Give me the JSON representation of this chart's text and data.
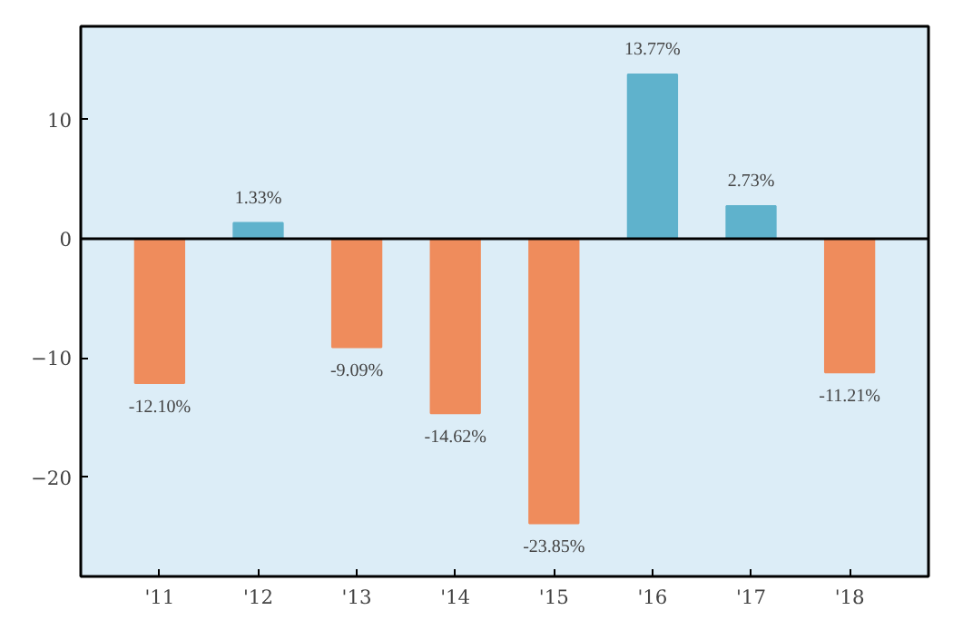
{
  "chart_data": {
    "type": "bar",
    "categories": [
      "'11",
      "'12",
      "'13",
      "'14",
      "'15",
      "'16",
      "'17",
      "'18"
    ],
    "values": [
      -12.1,
      1.33,
      -9.09,
      -14.62,
      -23.85,
      13.77,
      2.73,
      -11.21
    ],
    "value_labels": [
      "-12.10%",
      "1.33%",
      "-9.09%",
      "-14.62%",
      "-23.85%",
      "13.77%",
      "2.73%",
      "-11.21%"
    ],
    "colors": [
      "#ef8c5c",
      "#5fb2cc",
      "#ef8c5c",
      "#ef8c5c",
      "#ef8c5c",
      "#5fb2cc",
      "#5fb2cc",
      "#ef8c5c"
    ],
    "ylim": [
      -28.3,
      17.8
    ],
    "yticks": [
      -20,
      -10,
      0,
      10
    ],
    "ref_lines": [
      {
        "axis": "y",
        "value": 0,
        "label": null,
        "color": "#000000"
      }
    ],
    "grid": false
  }
}
